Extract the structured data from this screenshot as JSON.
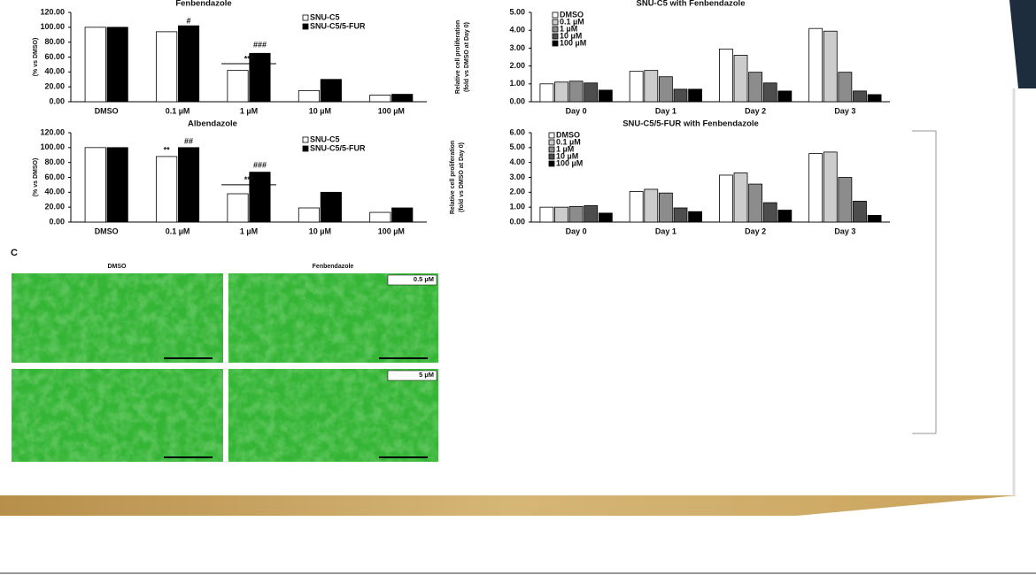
{
  "chart_data": [
    {
      "type": "bar",
      "title": "Fenbendazole",
      "y_label": [
        "(% vs DMSO)"
      ],
      "categories": [
        "DMSO",
        "0.1 µM",
        "1 µM",
        "10 µM",
        "100 µM"
      ],
      "series": [
        {
          "name": "SNU-C5",
          "color": "#ffffff",
          "values": [
            100,
            94,
            42,
            15,
            9
          ]
        },
        {
          "name": "SNU-C5/5-FUR",
          "color": "#000000",
          "values": [
            100,
            102,
            65,
            30,
            10
          ]
        }
      ],
      "ylim": [
        0,
        120
      ],
      "yticks": [
        {
          "value": 0,
          "label": "0.00"
        },
        {
          "value": 20,
          "label": "20.00"
        },
        {
          "value": 40,
          "label": "40.00"
        },
        {
          "value": 60,
          "label": "60.00"
        },
        {
          "value": 80,
          "label": "80.00"
        },
        {
          "value": 100,
          "label": "100.00"
        },
        {
          "value": 120,
          "label": "120.00"
        }
      ],
      "annotations": [
        "#",
        "***",
        "###"
      ]
    },
    {
      "type": "bar",
      "title": "Albendazole",
      "y_label": [
        "(% vs DMSO)"
      ],
      "categories": [
        "DMSO",
        "0.1 µM",
        "1 µM",
        "10 µM",
        "100 µM"
      ],
      "series": [
        {
          "name": "SNU-C5",
          "color": "#ffffff",
          "values": [
            100,
            88,
            38,
            19,
            13
          ]
        },
        {
          "name": "SNU-C5/5-FUR",
          "color": "#000000",
          "values": [
            100,
            100,
            67,
            40,
            19
          ]
        }
      ],
      "ylim": [
        0,
        120
      ],
      "yticks": [
        {
          "value": 0,
          "label": "0.00"
        },
        {
          "value": 20,
          "label": "20.00"
        },
        {
          "value": 40,
          "label": "40.00"
        },
        {
          "value": 60,
          "label": "60.00"
        },
        {
          "value": 80,
          "label": "80.00"
        },
        {
          "value": 100,
          "label": "100.00"
        },
        {
          "value": 120,
          "label": "120.00"
        }
      ],
      "annotations": [
        "**",
        "##",
        "***",
        "###"
      ]
    },
    {
      "type": "bar",
      "title": "SNU-C5 with Fenbendazole",
      "y_label": [
        "Relative cell proliferation",
        "(fold vs DMSO at Day 0)"
      ],
      "categories": [
        "Day 0",
        "Day 1",
        "Day 2",
        "Day 3"
      ],
      "series": [
        {
          "name": "DMSO",
          "color": "#ffffff",
          "values": [
            1.0,
            1.7,
            2.95,
            4.1
          ]
        },
        {
          "name": "0.1 µM",
          "color": "#cccccc",
          "values": [
            1.1,
            1.75,
            2.6,
            3.95
          ]
        },
        {
          "name": "1 µM",
          "color": "#8c8c8c",
          "values": [
            1.15,
            1.4,
            1.65,
            1.65
          ]
        },
        {
          "name": "10 µM",
          "color": "#4d4d4d",
          "values": [
            1.05,
            0.7,
            1.05,
            0.6
          ]
        },
        {
          "name": "100 µM",
          "color": "#000000",
          "values": [
            0.65,
            0.7,
            0.6,
            0.4
          ]
        }
      ],
      "ylim": [
        0,
        5
      ],
      "yticks": [
        {
          "value": 0,
          "label": "0.00"
        },
        {
          "value": 1,
          "label": "1.00"
        },
        {
          "value": 2,
          "label": "2.00"
        },
        {
          "value": 3,
          "label": "3.00"
        },
        {
          "value": 4,
          "label": "4.00"
        },
        {
          "value": 5,
          "label": "5.00"
        }
      ],
      "annotations": []
    },
    {
      "type": "bar",
      "title": "SNU-C5/5-FUR with Fenbendazole",
      "y_label": [
        "Relative cell proliferation",
        "(fold vs DMSO at Day 0)"
      ],
      "categories": [
        "Day 0",
        "Day 1",
        "Day 2",
        "Day 3"
      ],
      "series": [
        {
          "name": "DMSO",
          "color": "#ffffff",
          "values": [
            1.0,
            2.05,
            3.15,
            4.6
          ]
        },
        {
          "name": "0.1 µM",
          "color": "#cccccc",
          "values": [
            1.0,
            2.2,
            3.3,
            4.7
          ]
        },
        {
          "name": "1 µM",
          "color": "#8c8c8c",
          "values": [
            1.05,
            1.95,
            2.55,
            3.0
          ]
        },
        {
          "name": "10 µM",
          "color": "#4d4d4d",
          "values": [
            1.1,
            0.95,
            1.3,
            1.4
          ]
        },
        {
          "name": "100 µM",
          "color": "#000000",
          "values": [
            0.6,
            0.7,
            0.8,
            0.45
          ]
        }
      ],
      "ylim": [
        0,
        6
      ],
      "yticks": [
        {
          "value": 0,
          "label": "0.00"
        },
        {
          "value": 1,
          "label": "1.00"
        },
        {
          "value": 2,
          "label": "2.00"
        },
        {
          "value": 3,
          "label": "3.00"
        },
        {
          "value": 4,
          "label": "4.00"
        },
        {
          "value": 5,
          "label": "5.00"
        },
        {
          "value": 6,
          "label": "6.00"
        }
      ],
      "annotations": []
    }
  ],
  "panel_c": {
    "label": "C",
    "columns": [
      "DMSO",
      "Fenbendazole"
    ],
    "doses": [
      "0.5 µM",
      "5 µM"
    ]
  }
}
